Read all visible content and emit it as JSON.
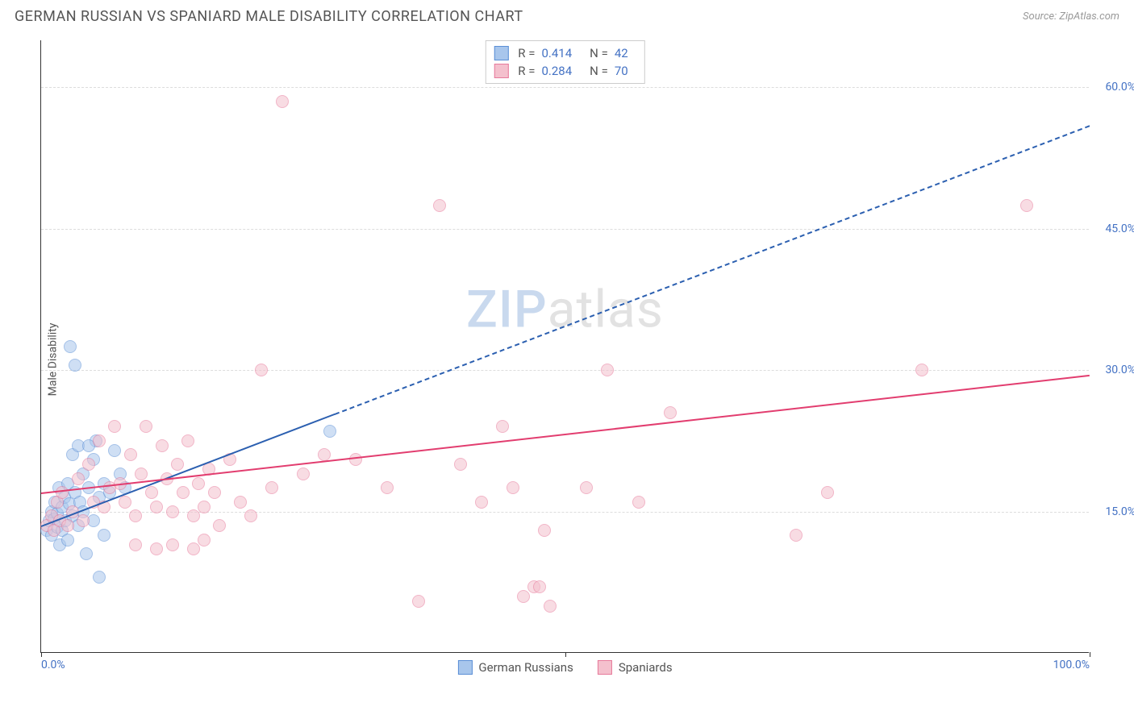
{
  "title": "GERMAN RUSSIAN VS SPANIARD MALE DISABILITY CORRELATION CHART",
  "source": "Source: ZipAtlas.com",
  "y_axis_title": "Male Disability",
  "chart": {
    "type": "scatter",
    "xlim": [
      0,
      100
    ],
    "ylim": [
      0,
      65
    ],
    "background_color": "#ffffff",
    "grid_color": "#dddddd",
    "axis_color": "#333333",
    "tick_color": "#4472c4",
    "y_ticks": [
      15,
      30,
      45,
      60
    ],
    "y_tick_labels": [
      "15.0%",
      "30.0%",
      "45.0%",
      "60.0%"
    ],
    "x_ticks": [
      0,
      50,
      100
    ],
    "x_tick_labels": [
      "0.0%",
      "",
      "100.0%"
    ],
    "point_radius": 8,
    "point_opacity": 0.55,
    "series": [
      {
        "key": "german_russians",
        "label": "German Russians",
        "fill": "#a8c6ec",
        "stroke": "#5b8fd6",
        "R": "0.414",
        "N": "42",
        "trend": {
          "x1": 0,
          "y1": 13.5,
          "x2": 100,
          "y2": 56,
          "solid_until_x": 28,
          "color": "#2b5fb0",
          "width": 2.5,
          "dash": "6,5"
        },
        "points": [
          [
            0.5,
            13.0
          ],
          [
            0.8,
            14.0
          ],
          [
            1.0,
            12.5
          ],
          [
            1.0,
            15.0
          ],
          [
            1.2,
            14.2
          ],
          [
            1.3,
            16.0
          ],
          [
            1.5,
            13.3
          ],
          [
            1.5,
            14.8
          ],
          [
            1.7,
            17.5
          ],
          [
            1.8,
            11.5
          ],
          [
            2.0,
            15.5
          ],
          [
            2.0,
            13.0
          ],
          [
            2.2,
            16.5
          ],
          [
            2.3,
            14.0
          ],
          [
            2.5,
            18.0
          ],
          [
            2.5,
            12.0
          ],
          [
            2.7,
            15.8
          ],
          [
            3.0,
            21.0
          ],
          [
            3.0,
            14.5
          ],
          [
            3.2,
            17.0
          ],
          [
            3.5,
            22.0
          ],
          [
            3.5,
            13.5
          ],
          [
            3.7,
            16.0
          ],
          [
            4.0,
            19.0
          ],
          [
            4.0,
            15.0
          ],
          [
            4.3,
            10.5
          ],
          [
            4.5,
            17.5
          ],
          [
            5.0,
            20.5
          ],
          [
            5.0,
            14.0
          ],
          [
            5.2,
            22.5
          ],
          [
            5.5,
            8.0
          ],
          [
            5.5,
            16.5
          ],
          [
            6.0,
            18.0
          ],
          [
            6.5,
            17.0
          ],
          [
            7.0,
            21.5
          ],
          [
            7.5,
            19.0
          ],
          [
            8.0,
            17.5
          ],
          [
            2.8,
            32.5
          ],
          [
            3.2,
            30.5
          ],
          [
            4.5,
            22.0
          ],
          [
            27.5,
            23.5
          ],
          [
            6.0,
            12.5
          ]
        ]
      },
      {
        "key": "spaniards",
        "label": "Spaniards",
        "fill": "#f4c0cd",
        "stroke": "#e77a9b",
        "R": "0.284",
        "N": "70",
        "trend": {
          "x1": 0,
          "y1": 17.0,
          "x2": 100,
          "y2": 29.5,
          "solid_until_x": 100,
          "color": "#e23d6f",
          "width": 2.5,
          "dash": ""
        },
        "points": [
          [
            0.5,
            13.5
          ],
          [
            1.0,
            14.5
          ],
          [
            1.2,
            13.0
          ],
          [
            1.5,
            16.0
          ],
          [
            1.8,
            14.0
          ],
          [
            2.0,
            17.0
          ],
          [
            2.5,
            13.5
          ],
          [
            3.0,
            15.0
          ],
          [
            3.5,
            18.5
          ],
          [
            4.0,
            14.0
          ],
          [
            4.5,
            20.0
          ],
          [
            5.0,
            16.0
          ],
          [
            5.5,
            22.5
          ],
          [
            6.0,
            15.5
          ],
          [
            6.5,
            17.5
          ],
          [
            7.0,
            24.0
          ],
          [
            7.5,
            18.0
          ],
          [
            8.0,
            16.0
          ],
          [
            8.5,
            21.0
          ],
          [
            9.0,
            14.5
          ],
          [
            9.5,
            19.0
          ],
          [
            10.0,
            24.0
          ],
          [
            10.5,
            17.0
          ],
          [
            11.0,
            15.5
          ],
          [
            11.5,
            22.0
          ],
          [
            12.0,
            18.5
          ],
          [
            12.5,
            15.0
          ],
          [
            13.0,
            20.0
          ],
          [
            13.5,
            17.0
          ],
          [
            14.0,
            22.5
          ],
          [
            14.5,
            14.5
          ],
          [
            15.0,
            18.0
          ],
          [
            15.5,
            15.5
          ],
          [
            16.0,
            19.5
          ],
          [
            16.5,
            17.0
          ],
          [
            17.0,
            13.5
          ],
          [
            18.0,
            20.5
          ],
          [
            19.0,
            16.0
          ],
          [
            20.0,
            14.5
          ],
          [
            21.0,
            30.0
          ],
          [
            22.0,
            17.5
          ],
          [
            23.0,
            58.5
          ],
          [
            25.0,
            19.0
          ],
          [
            27.0,
            21.0
          ],
          [
            30.0,
            20.5
          ],
          [
            33.0,
            17.5
          ],
          [
            38.0,
            47.5
          ],
          [
            40.0,
            20.0
          ],
          [
            42.0,
            16.0
          ],
          [
            44.0,
            24.0
          ],
          [
            45.0,
            17.5
          ],
          [
            46.0,
            6.0
          ],
          [
            47.0,
            7.0
          ],
          [
            47.5,
            7.0
          ],
          [
            48.0,
            13.0
          ],
          [
            52.0,
            17.5
          ],
          [
            54.0,
            30.0
          ],
          [
            57.0,
            16.0
          ],
          [
            60.0,
            25.5
          ],
          [
            72.0,
            12.5
          ],
          [
            75.0,
            17.0
          ],
          [
            84.0,
            30.0
          ],
          [
            94.0,
            47.5
          ],
          [
            36.0,
            5.5
          ],
          [
            48.5,
            5.0
          ],
          [
            11.0,
            11.0
          ],
          [
            12.5,
            11.5
          ],
          [
            14.5,
            11.0
          ],
          [
            9.0,
            11.5
          ],
          [
            15.5,
            12.0
          ]
        ]
      }
    ]
  },
  "watermark": {
    "part1": "ZIP",
    "part2": "atlas"
  },
  "legend_labels": {
    "R": "R =",
    "N": "N ="
  }
}
